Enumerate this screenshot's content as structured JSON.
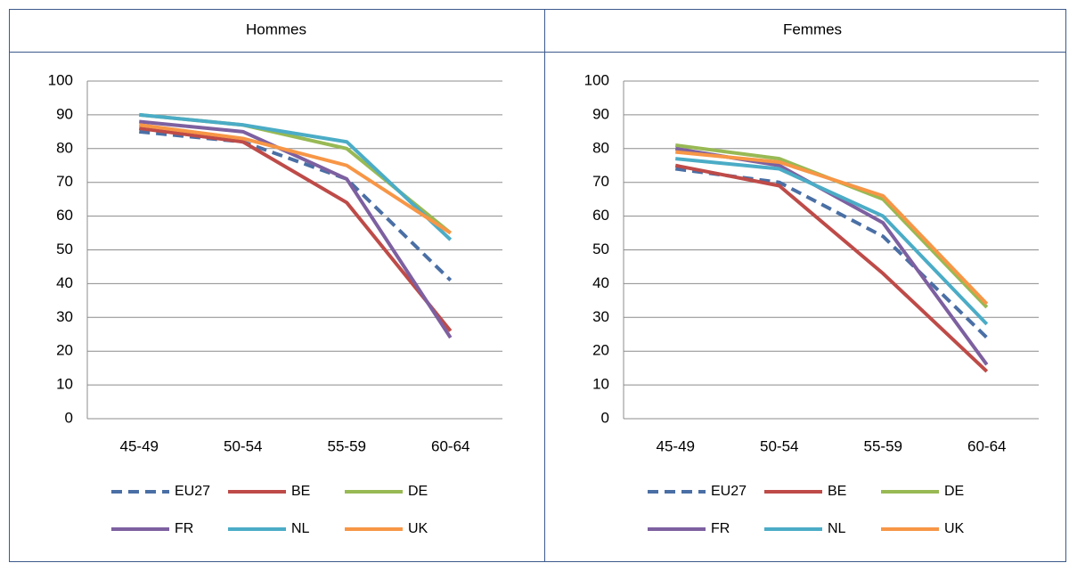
{
  "chart_data": [
    {
      "type": "line",
      "title": "Hommes",
      "categories": [
        "45-49",
        "50-54",
        "55-59",
        "60-64"
      ],
      "ylim": [
        0,
        100
      ],
      "yticks": [
        0,
        10,
        20,
        30,
        40,
        50,
        60,
        70,
        80,
        90,
        100
      ],
      "grid": true,
      "series": [
        {
          "name": "EU27",
          "color": "#4a6fa5",
          "dash": true,
          "values": [
            85,
            82,
            71,
            41
          ]
        },
        {
          "name": "BE",
          "color": "#be4b48",
          "values": [
            86,
            82,
            64,
            26
          ]
        },
        {
          "name": "DE",
          "color": "#98b954",
          "values": [
            90,
            87,
            80,
            55
          ]
        },
        {
          "name": "FR",
          "color": "#7d60a0",
          "values": [
            88,
            85,
            71,
            24
          ]
        },
        {
          "name": "NL",
          "color": "#4bacc6",
          "values": [
            90,
            87,
            82,
            53
          ]
        },
        {
          "name": "UK",
          "color": "#f79646",
          "values": [
            87,
            83,
            75,
            55
          ]
        }
      ]
    },
    {
      "type": "line",
      "title": "Femmes",
      "categories": [
        "45-49",
        "50-54",
        "55-59",
        "60-64"
      ],
      "ylim": [
        0,
        100
      ],
      "yticks": [
        0,
        10,
        20,
        30,
        40,
        50,
        60,
        70,
        80,
        90,
        100
      ],
      "grid": true,
      "series": [
        {
          "name": "EU27",
          "color": "#4a6fa5",
          "dash": true,
          "values": [
            74,
            70,
            54,
            24
          ]
        },
        {
          "name": "BE",
          "color": "#be4b48",
          "values": [
            75,
            69,
            43,
            14
          ]
        },
        {
          "name": "DE",
          "color": "#98b954",
          "values": [
            81,
            77,
            65,
            33
          ]
        },
        {
          "name": "FR",
          "color": "#7d60a0",
          "values": [
            80,
            75,
            58,
            16
          ]
        },
        {
          "name": "NL",
          "color": "#4bacc6",
          "values": [
            77,
            74,
            60,
            28
          ]
        },
        {
          "name": "UK",
          "color": "#f79646",
          "values": [
            79,
            76,
            66,
            34
          ]
        }
      ]
    }
  ]
}
